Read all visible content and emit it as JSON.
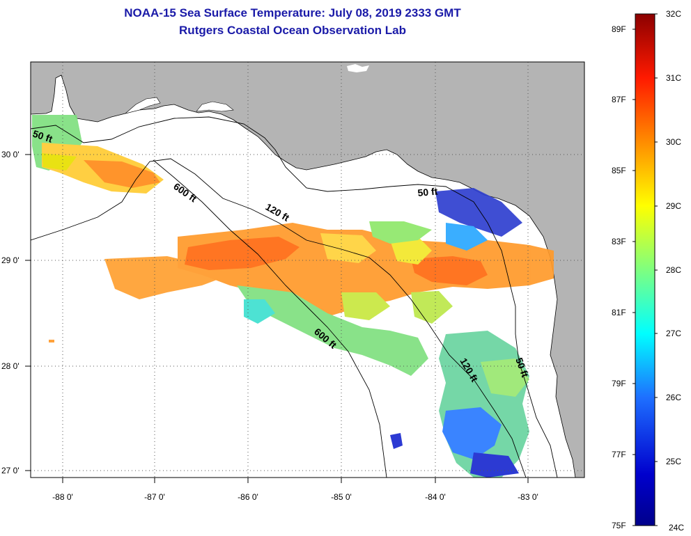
{
  "title": "NOAA-15 Sea Surface Temperature:  July 08, 2019 2333 GMT",
  "subtitle": "Rutgers Coastal Ocean Observation Lab",
  "map": {
    "lon_ticks": [
      "-88 0'",
      "-87 0'",
      "-86 0'",
      "-85 0'",
      "-84 0'",
      "-83 0'"
    ],
    "lat_ticks": [
      "30 0'",
      "29 0'",
      "28 0'",
      "27 0'"
    ],
    "contour_labels": [
      "50 ft",
      "600 ft",
      "120 ft",
      "50 ft",
      "600 ft",
      "120 ft",
      "50 ft"
    ],
    "land_color": "#b4b4b4",
    "ocean_color": "#ffffff"
  },
  "colorbar": {
    "celsius_labels": [
      "32C",
      "31C",
      "30C",
      "29C",
      "28C",
      "27C",
      "26C",
      "25C",
      "24C"
    ],
    "fahrenheit_labels": [
      "89F",
      "87F",
      "85F",
      "83F",
      "81F",
      "79F",
      "77F",
      "75F"
    ],
    "colors": [
      "#8b0000",
      "#ff0000",
      "#ff8c00",
      "#ffff00",
      "#7fff7f",
      "#00ffff",
      "#1e90ff",
      "#0000cd",
      "#00008b"
    ]
  }
}
